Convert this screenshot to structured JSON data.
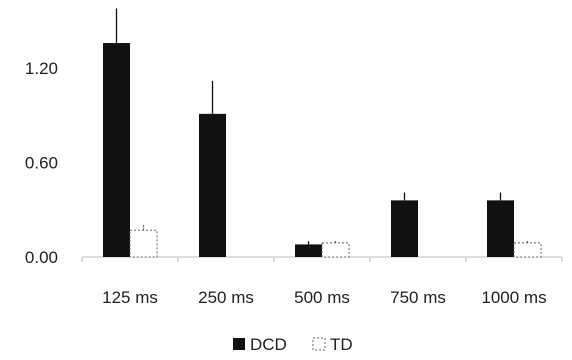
{
  "chart_data": {
    "type": "bar",
    "categories": [
      "125 ms",
      "250 ms",
      "500 ms",
      "750 ms",
      "1000 ms"
    ],
    "series": [
      {
        "name": "DCD",
        "values": [
          1.36,
          0.91,
          0.08,
          0.36,
          0.36
        ],
        "errors": [
          0.22,
          0.21,
          0.02,
          0.05,
          0.05
        ],
        "color": "#111111",
        "style": "solid"
      },
      {
        "name": "TD",
        "values": [
          0.17,
          0.0,
          0.09,
          0.0,
          0.09
        ],
        "errors": [
          0.04,
          0.0,
          0.02,
          0.0,
          0.02
        ],
        "color": "#666666",
        "style": "dashed-outline"
      }
    ],
    "ylim": [
      0,
      1.5
    ],
    "yticks": [
      "0.00",
      "0.60",
      "1.20"
    ],
    "ytick_values": [
      0,
      0.6,
      1.2
    ],
    "legend": {
      "position": "bottom-center"
    },
    "grid": false
  }
}
